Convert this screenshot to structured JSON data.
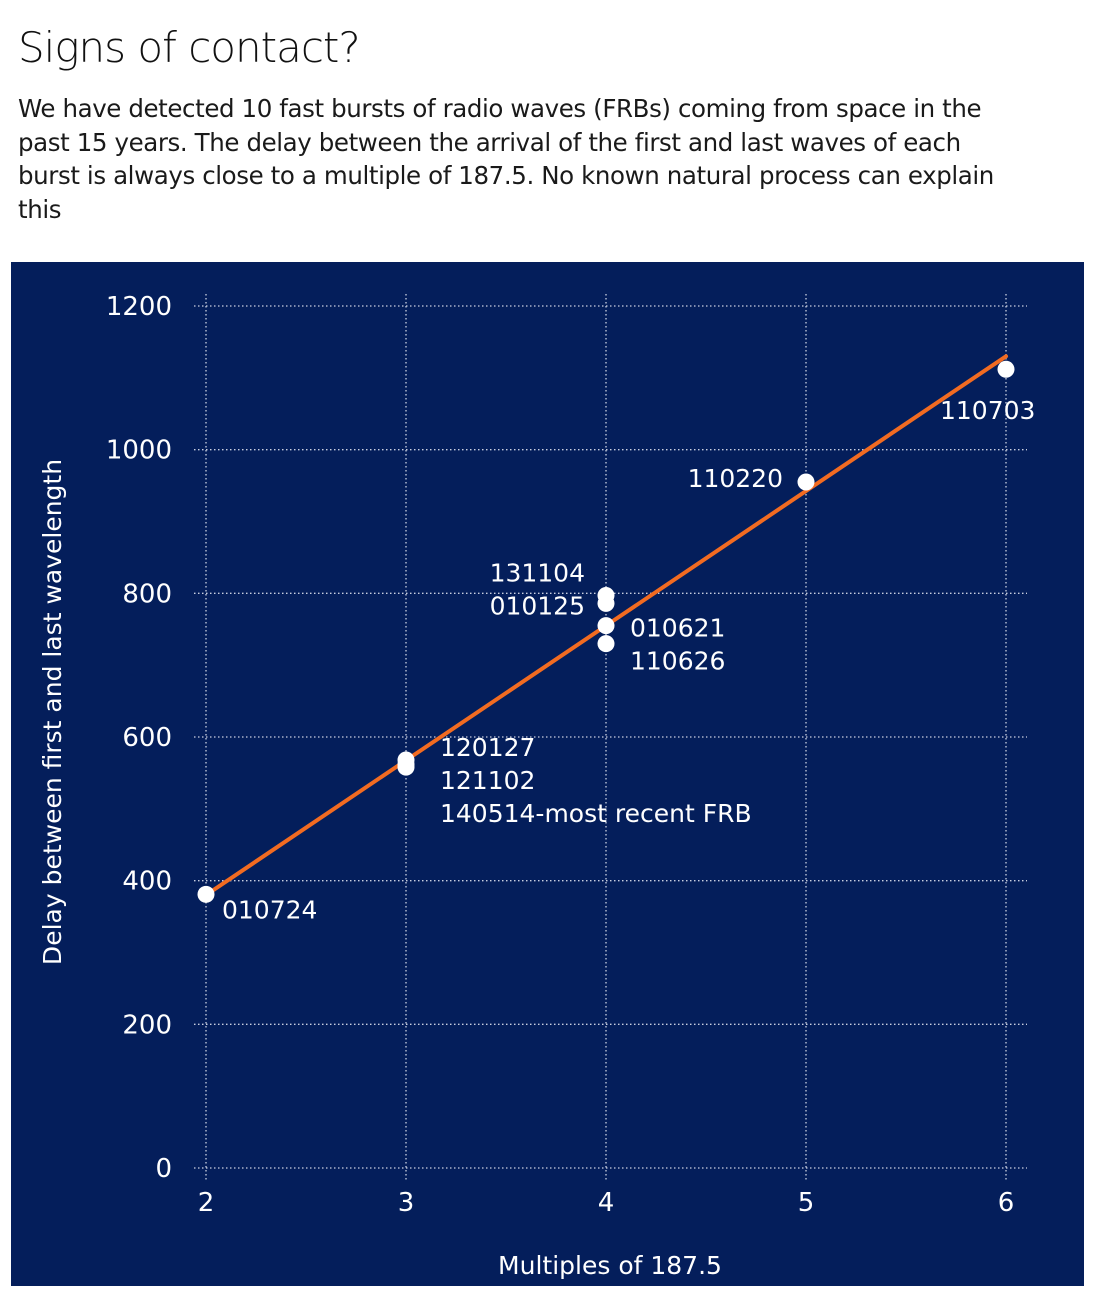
{
  "header": {
    "title": "Signs of contact?",
    "subtitle": "We have detected 10 fast bursts of radio waves (FRBs) coming from space in the past 15 years. The delay between the arrival of the first and last waves of each burst is always close to a multiple of 187.5. No known natural process can explain this"
  },
  "colors": {
    "panel_background": "#041e5b",
    "grid": "#c9cfe0",
    "point": "#ffffff",
    "trend_line": "#f26b21",
    "text": "#ffffff"
  },
  "chart_data": {
    "type": "scatter",
    "xlabel": "Multiples of 187.5",
    "ylabel": "Delay between first and last wavelength",
    "xlim": [
      2,
      6
    ],
    "ylim": [
      0,
      1200
    ],
    "xticks": [
      2,
      3,
      4,
      5,
      6
    ],
    "yticks": [
      0,
      200,
      400,
      600,
      800,
      1000,
      1200
    ],
    "grid": true,
    "points": [
      {
        "x": 2,
        "y": 381
      },
      {
        "x": 3,
        "y": 558
      },
      {
        "x": 3,
        "y": 562
      },
      {
        "x": 3,
        "y": 568
      },
      {
        "x": 4,
        "y": 730
      },
      {
        "x": 4,
        "y": 755
      },
      {
        "x": 4,
        "y": 786
      },
      {
        "x": 4,
        "y": 797
      },
      {
        "x": 5,
        "y": 955
      },
      {
        "x": 6,
        "y": 1112
      }
    ],
    "annotations": [
      {
        "text": "010724",
        "x": 2,
        "y": 381,
        "anchor": "below-right"
      },
      {
        "text": "120127",
        "x": 3,
        "y": 568,
        "anchor": "right-line1"
      },
      {
        "text": "121102",
        "x": 3,
        "y": 568,
        "anchor": "right-line2"
      },
      {
        "text": "140514-most recent FRB",
        "x": 3,
        "y": 568,
        "anchor": "right-line3"
      },
      {
        "text": "131104",
        "x": 4,
        "y": 797,
        "anchor": "left-upper"
      },
      {
        "text": "010125",
        "x": 4,
        "y": 797,
        "anchor": "left-lower"
      },
      {
        "text": "010621",
        "x": 4,
        "y": 755,
        "anchor": "right-upper"
      },
      {
        "text": "110626",
        "x": 4,
        "y": 755,
        "anchor": "right-lower"
      },
      {
        "text": "110220",
        "x": 5,
        "y": 955,
        "anchor": "left"
      },
      {
        "text": "110703",
        "x": 6,
        "y": 1112,
        "anchor": "below"
      }
    ],
    "trend_line": {
      "x": [
        2,
        6
      ],
      "y": [
        380,
        1130
      ]
    }
  }
}
